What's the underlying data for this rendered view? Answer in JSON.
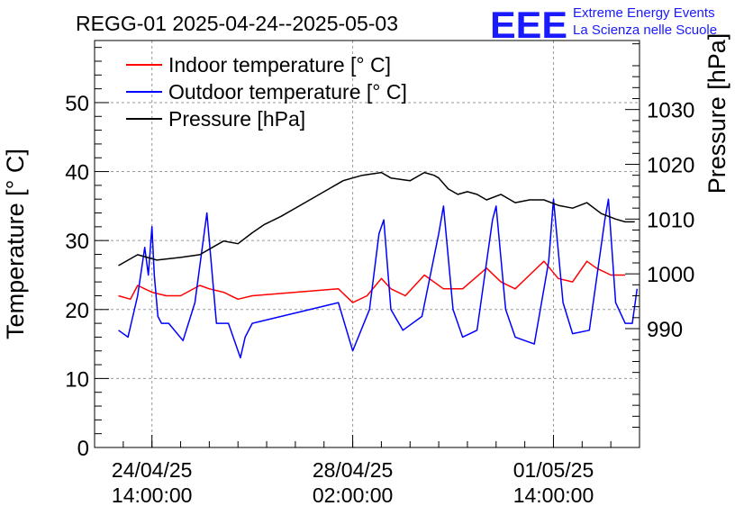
{
  "chart_data": {
    "type": "line",
    "title": "REGG-01 2025-04-24--2025-05-03",
    "ylabel_left": "Temperature [° C]",
    "ylabel_right": "Pressure [hPa]",
    "xlim": [
      "2025-04-23T14:00:00",
      "2025-05-03T02:00:00"
    ],
    "ylim_left": [
      0,
      59
    ],
    "ylim_right": [
      968.3,
      1042.6
    ],
    "left_ticks": [
      0,
      10,
      20,
      30,
      40,
      50
    ],
    "right_ticks": [
      990,
      1000,
      1010,
      1020,
      1030
    ],
    "x_ticks": [
      {
        "t": "2025-04-24T14:00:00",
        "line1": "24/04/25",
        "line2": "14:00:00"
      },
      {
        "t": "2025-04-28T02:00:00",
        "line1": "28/04/25",
        "line2": "02:00:00"
      },
      {
        "t": "2025-05-01T14:00:00",
        "line1": "01/05/25",
        "line2": "14:00:00"
      }
    ],
    "grid": true,
    "legend_position": "top-left",
    "series": [
      {
        "name": "Indoor temperature [° C]",
        "color": "#ff0000",
        "axis": "left",
        "x": [
          "2025-04-24T00:00",
          "2025-04-24T05:00",
          "2025-04-24T08:00",
          "2025-04-24T14:00",
          "2025-04-24T20:00",
          "2025-04-25T02:00",
          "2025-04-25T10:00",
          "2025-04-25T14:00",
          "2025-04-25T20:00",
          "2025-04-26T02:00",
          "2025-04-26T08:00",
          "2025-04-27T20:00",
          "2025-04-28T02:00",
          "2025-04-28T08:00",
          "2025-04-28T14:00",
          "2025-04-28T18:00",
          "2025-04-29T00:00",
          "2025-04-29T08:00",
          "2025-04-29T16:00",
          "2025-04-30T00:00",
          "2025-04-30T10:00",
          "2025-04-30T16:00",
          "2025-04-30T22:00",
          "2025-05-01T04:00",
          "2025-05-01T10:00",
          "2025-05-01T16:00",
          "2025-05-01T22:00",
          "2025-05-02T04:00",
          "2025-05-02T08:00",
          "2025-05-02T14:00",
          "2025-05-02T20:00"
        ],
        "y": [
          22,
          21.5,
          23.5,
          22.5,
          22,
          22,
          23.5,
          23,
          22.5,
          21.5,
          22,
          23,
          21,
          22,
          24.5,
          23,
          22,
          25,
          23,
          23,
          26,
          24,
          23,
          25,
          27,
          24.5,
          24,
          27,
          26,
          25,
          25
        ]
      },
      {
        "name": "Outdoor temperature [° C]",
        "color": "#0000ff",
        "axis": "left",
        "x": [
          "2025-04-24T00:00",
          "2025-04-24T04:00",
          "2025-04-24T08:00",
          "2025-04-24T11:00",
          "2025-04-24T12:30",
          "2025-04-24T14:00",
          "2025-04-24T15:00",
          "2025-04-24T16:30",
          "2025-04-24T18:00",
          "2025-04-24T21:00",
          "2025-04-25T03:00",
          "2025-04-25T08:00",
          "2025-04-25T13:00",
          "2025-04-25T14:30",
          "2025-04-25T17:00",
          "2025-04-25T22:00",
          "2025-04-26T03:00",
          "2025-04-26T05:00",
          "2025-04-26T08:00",
          "2025-04-27T20:00",
          "2025-04-28T02:00",
          "2025-04-28T09:00",
          "2025-04-28T13:00",
          "2025-04-28T15:00",
          "2025-04-28T18:00",
          "2025-04-28T23:00",
          "2025-04-29T07:00",
          "2025-04-29T14:00",
          "2025-04-29T16:00",
          "2025-04-29T20:00",
          "2025-04-30T00:00",
          "2025-04-30T06:00",
          "2025-04-30T12:30",
          "2025-04-30T14:00",
          "2025-04-30T18:00",
          "2025-04-30T22:00",
          "2025-05-01T06:00",
          "2025-05-01T12:00",
          "2025-05-01T14:00",
          "2025-05-01T18:00",
          "2025-05-01T22:00",
          "2025-05-02T05:00",
          "2025-05-02T11:30",
          "2025-05-02T13:00",
          "2025-05-02T16:00",
          "2025-05-02T20:00",
          "2025-05-02T23:00",
          "2025-05-03T01:00"
        ],
        "y": [
          17,
          16,
          22,
          29,
          25,
          32,
          25,
          19,
          18,
          18,
          15.5,
          21,
          34,
          28,
          18,
          18,
          13,
          16,
          18,
          21,
          14,
          20,
          31,
          33,
          20,
          17,
          19,
          31,
          35,
          20,
          16,
          17,
          33,
          35,
          20,
          16,
          15,
          27,
          36,
          21,
          16.5,
          17,
          33,
          36,
          21,
          18,
          18,
          23
        ]
      },
      {
        "name": "Pressure [hPa]",
        "color": "#000000",
        "axis": "right",
        "x": [
          "2025-04-24T00:00",
          "2025-04-24T08:00",
          "2025-04-24T16:00",
          "2025-04-25T02:00",
          "2025-04-25T10:00",
          "2025-04-25T16:00",
          "2025-04-25T20:00",
          "2025-04-26T02:00",
          "2025-04-26T08:00",
          "2025-04-26T13:00",
          "2025-04-26T20:00",
          "2025-04-27T06:00",
          "2025-04-27T16:00",
          "2025-04-27T22:00",
          "2025-04-28T06:00",
          "2025-04-28T14:00",
          "2025-04-28T18:00",
          "2025-04-29T02:00",
          "2025-04-29T08:00",
          "2025-04-29T12:00",
          "2025-04-29T14:00",
          "2025-04-29T18:00",
          "2025-04-29T22:00",
          "2025-04-30T02:00",
          "2025-04-30T06:00",
          "2025-04-30T10:00",
          "2025-04-30T16:00",
          "2025-04-30T22:00",
          "2025-05-01T04:00",
          "2025-05-01T10:00",
          "2025-05-01T16:00",
          "2025-05-01T22:00",
          "2025-05-02T04:00",
          "2025-05-02T10:00",
          "2025-05-02T16:00",
          "2025-05-02T20:00",
          "2025-05-03T00:00"
        ],
        "y": [
          1001.5,
          1003.5,
          1002.5,
          1003,
          1003.5,
          1005,
          1006,
          1005.5,
          1007.5,
          1009,
          1010.5,
          1013,
          1015.5,
          1017,
          1018,
          1018.5,
          1017.5,
          1017,
          1018.5,
          1018,
          1017.5,
          1015.5,
          1014.5,
          1015,
          1014.5,
          1013.5,
          1014.5,
          1013,
          1013.5,
          1013.5,
          1012.5,
          1012,
          1013,
          1011,
          1010,
          1009.5,
          1009.5
        ]
      }
    ]
  },
  "logo": {
    "mark": "EEE",
    "line1": "Extreme Energy Events",
    "line2": "La Scienza nelle Scuole",
    "color": "#1a1aff"
  }
}
